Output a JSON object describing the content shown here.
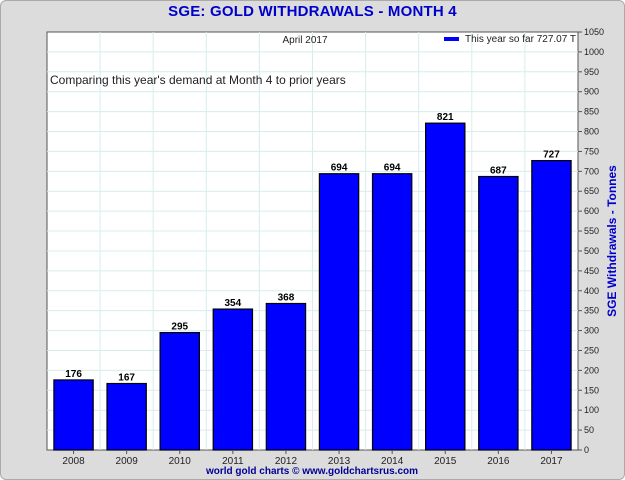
{
  "chart_data": {
    "type": "bar",
    "title": "SGE: GOLD WITHDRAWALS - MONTH 4",
    "subtitle": "April 2017",
    "annotation": "Comparing this year's demand at Month 4 to prior years",
    "legend": {
      "label": "This year so far 727.07 T",
      "color": "#0000ff",
      "placement": "top-right"
    },
    "categories": [
      "2008",
      "2009",
      "2010",
      "2011",
      "2012",
      "2013",
      "2014",
      "2015",
      "2016",
      "2017"
    ],
    "values": [
      176,
      167,
      295,
      354,
      368,
      694,
      694,
      821,
      687,
      727
    ],
    "data_labels": [
      "176",
      "167",
      "295",
      "354",
      "368",
      "694",
      "694",
      "821",
      "687",
      "727"
    ],
    "ylabel": "SGE Withdrawals - Tonnes",
    "ylim": [
      0,
      1050
    ],
    "ytick_step": 50,
    "yaxis_side": "right",
    "grid": true,
    "bar_color": "#0000ff",
    "credit": "world gold charts © www.goldchartsrus.com"
  }
}
